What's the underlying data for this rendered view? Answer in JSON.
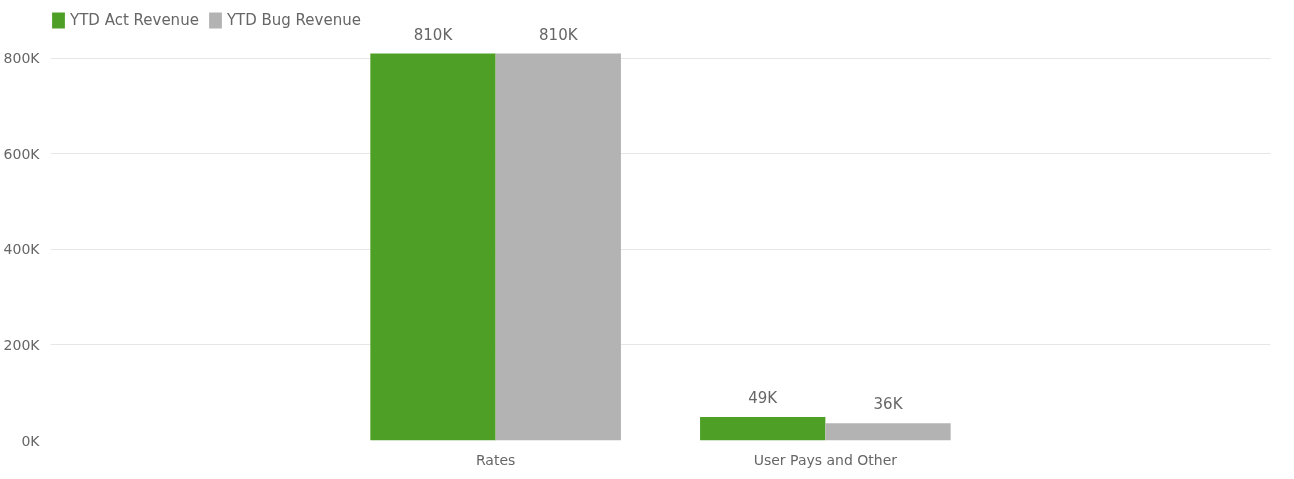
{
  "chart_data": {
    "type": "bar",
    "categories": [
      "Rates",
      "User Pays and Other"
    ],
    "series": [
      {
        "name": "YTD Act Revenue",
        "color": "#4e9f26",
        "values": [
          810000,
          49000
        ],
        "value_labels": [
          "810K",
          "49K"
        ]
      },
      {
        "name": "YTD Bug Revenue",
        "color": "#b3b3b3",
        "values": [
          810000,
          36000
        ],
        "value_labels": [
          "810K",
          "36K"
        ]
      }
    ],
    "ylim": [
      0,
      900000
    ],
    "yticks": [
      {
        "value": 0,
        "label": "0K"
      },
      {
        "value": 200000,
        "label": "200K"
      },
      {
        "value": 400000,
        "label": "400K"
      },
      {
        "value": 600000,
        "label": "600K"
      },
      {
        "value": 800000,
        "label": "800K"
      }
    ],
    "grid": "y",
    "legend": "top left"
  }
}
